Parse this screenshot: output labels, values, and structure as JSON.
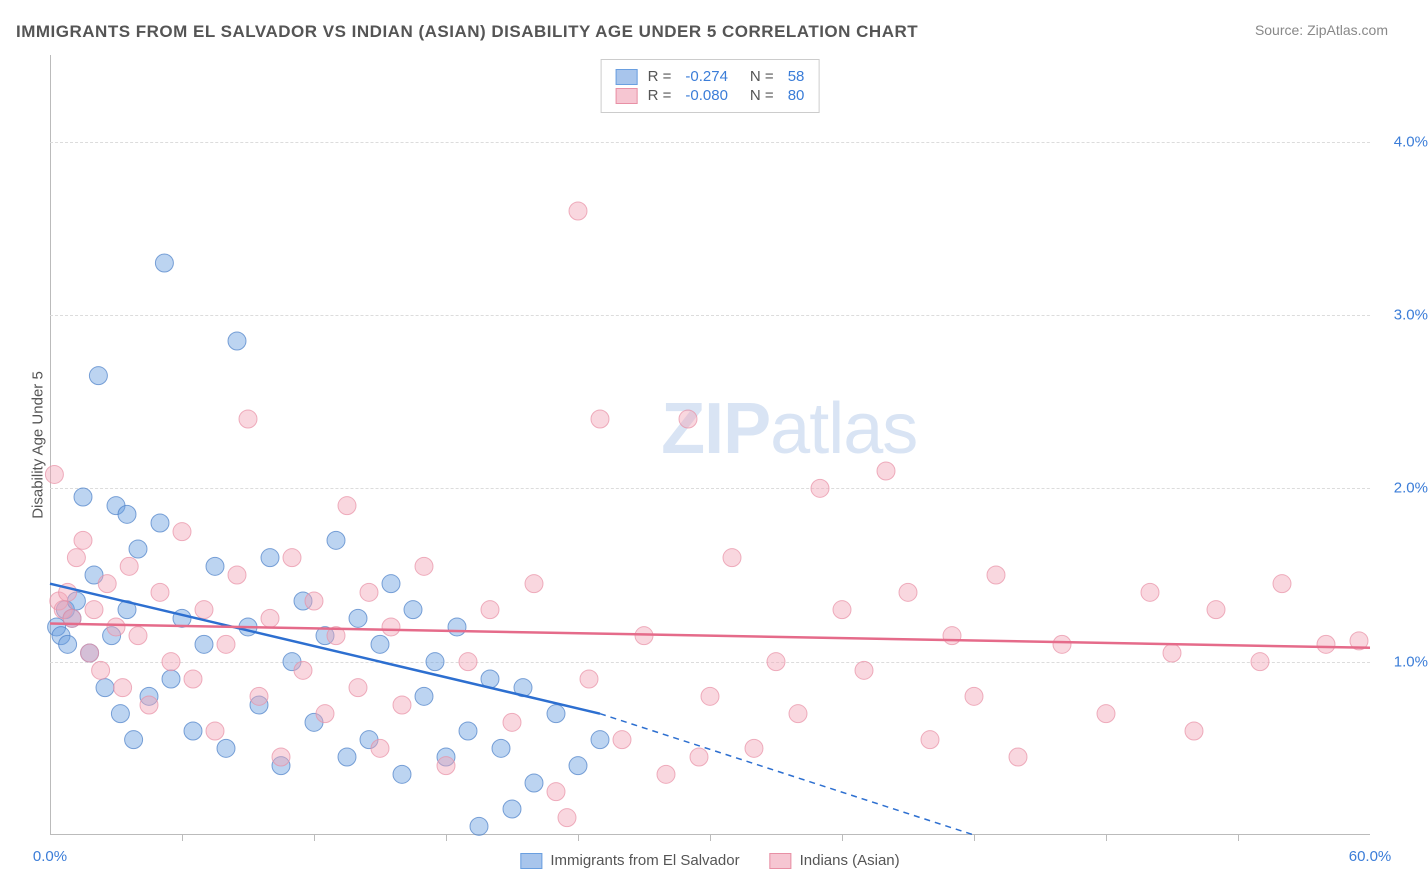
{
  "title": "IMMIGRANTS FROM EL SALVADOR VS INDIAN (ASIAN) DISABILITY AGE UNDER 5 CORRELATION CHART",
  "source_label": "Source:",
  "source_name": "ZipAtlas.com",
  "watermark": {
    "bold": "ZIP",
    "rest": "atlas"
  },
  "y_axis_label": "Disability Age Under 5",
  "chart": {
    "type": "scatter",
    "xlim": [
      0,
      60
    ],
    "ylim": [
      0,
      4.5
    ],
    "x_ticks": [
      0,
      60
    ],
    "x_tick_labels": [
      "0.0%",
      "60.0%"
    ],
    "y_ticks": [
      1.0,
      2.0,
      3.0,
      4.0
    ],
    "y_tick_labels": [
      "1.0%",
      "2.0%",
      "3.0%",
      "4.0%"
    ],
    "x_minor_ticks": [
      6,
      12,
      18,
      24,
      30,
      36,
      42,
      48,
      54
    ],
    "grid_color": "#dcdcdc",
    "background_color": "#ffffff",
    "marker_radius": 9,
    "marker_opacity": 0.45,
    "line_width": 2.5,
    "series": [
      {
        "name": "Immigrants from El Salvador",
        "color": "#6a9fe0",
        "stroke": "#4a7fc8",
        "line_color": "#2d6fd0",
        "R": "-0.274",
        "N": "58",
        "regression": {
          "x1": 0,
          "y1": 1.45,
          "x2": 25,
          "y2": 0.7,
          "extend_x": 42,
          "extend_y": 0.0
        },
        "points": [
          [
            0.3,
            1.2
          ],
          [
            0.5,
            1.15
          ],
          [
            0.7,
            1.3
          ],
          [
            0.8,
            1.1
          ],
          [
            1.0,
            1.25
          ],
          [
            1.2,
            1.35
          ],
          [
            1.5,
            1.95
          ],
          [
            1.8,
            1.05
          ],
          [
            2.0,
            1.5
          ],
          [
            2.2,
            2.65
          ],
          [
            2.5,
            0.85
          ],
          [
            2.8,
            1.15
          ],
          [
            3.0,
            1.9
          ],
          [
            3.2,
            0.7
          ],
          [
            3.5,
            1.3
          ],
          [
            3.8,
            0.55
          ],
          [
            4.0,
            1.65
          ],
          [
            4.5,
            0.8
          ],
          [
            5.0,
            1.8
          ],
          [
            5.2,
            3.3
          ],
          [
            5.5,
            0.9
          ],
          [
            6.0,
            1.25
          ],
          [
            6.5,
            0.6
          ],
          [
            7.0,
            1.1
          ],
          [
            7.5,
            1.55
          ],
          [
            8.0,
            0.5
          ],
          [
            8.5,
            2.85
          ],
          [
            9.0,
            1.2
          ],
          [
            9.5,
            0.75
          ],
          [
            10.0,
            1.6
          ],
          [
            10.5,
            0.4
          ],
          [
            11.0,
            1.0
          ],
          [
            11.5,
            1.35
          ],
          [
            12.0,
            0.65
          ],
          [
            12.5,
            1.15
          ],
          [
            13.0,
            1.7
          ],
          [
            13.5,
            0.45
          ],
          [
            14.0,
            1.25
          ],
          [
            14.5,
            0.55
          ],
          [
            15.0,
            1.1
          ],
          [
            15.5,
            1.45
          ],
          [
            16.0,
            0.35
          ],
          [
            16.5,
            1.3
          ],
          [
            17.0,
            0.8
          ],
          [
            17.5,
            1.0
          ],
          [
            18.0,
            0.45
          ],
          [
            18.5,
            1.2
          ],
          [
            19.0,
            0.6
          ],
          [
            19.5,
            0.05
          ],
          [
            20.0,
            0.9
          ],
          [
            20.5,
            0.5
          ],
          [
            21.0,
            0.15
          ],
          [
            21.5,
            0.85
          ],
          [
            22.0,
            0.3
          ],
          [
            23.0,
            0.7
          ],
          [
            24.0,
            0.4
          ],
          [
            25.0,
            0.55
          ],
          [
            3.5,
            1.85
          ]
        ]
      },
      {
        "name": "Indians (Asian)",
        "color": "#f2a7b8",
        "stroke": "#e890a5",
        "line_color": "#e56b8a",
        "R": "-0.080",
        "N": "80",
        "regression": {
          "x1": 0,
          "y1": 1.22,
          "x2": 60,
          "y2": 1.08
        },
        "points": [
          [
            0.2,
            2.08
          ],
          [
            0.4,
            1.35
          ],
          [
            0.6,
            1.3
          ],
          [
            0.8,
            1.4
          ],
          [
            1.0,
            1.25
          ],
          [
            1.2,
            1.6
          ],
          [
            1.5,
            1.7
          ],
          [
            1.8,
            1.05
          ],
          [
            2.0,
            1.3
          ],
          [
            2.3,
            0.95
          ],
          [
            2.6,
            1.45
          ],
          [
            3.0,
            1.2
          ],
          [
            3.3,
            0.85
          ],
          [
            3.6,
            1.55
          ],
          [
            4.0,
            1.15
          ],
          [
            4.5,
            0.75
          ],
          [
            5.0,
            1.4
          ],
          [
            5.5,
            1.0
          ],
          [
            6.0,
            1.75
          ],
          [
            6.5,
            0.9
          ],
          [
            7.0,
            1.3
          ],
          [
            7.5,
            0.6
          ],
          [
            8.0,
            1.1
          ],
          [
            8.5,
            1.5
          ],
          [
            9.0,
            2.4
          ],
          [
            9.5,
            0.8
          ],
          [
            10.0,
            1.25
          ],
          [
            10.5,
            0.45
          ],
          [
            11.0,
            1.6
          ],
          [
            11.5,
            0.95
          ],
          [
            12.0,
            1.35
          ],
          [
            12.5,
            0.7
          ],
          [
            13.0,
            1.15
          ],
          [
            13.5,
            1.9
          ],
          [
            14.0,
            0.85
          ],
          [
            14.5,
            1.4
          ],
          [
            15.0,
            0.5
          ],
          [
            15.5,
            1.2
          ],
          [
            16.0,
            0.75
          ],
          [
            17.0,
            1.55
          ],
          [
            18.0,
            0.4
          ],
          [
            19.0,
            1.0
          ],
          [
            20.0,
            1.3
          ],
          [
            21.0,
            0.65
          ],
          [
            22.0,
            1.45
          ],
          [
            23.0,
            0.25
          ],
          [
            24.0,
            3.6
          ],
          [
            24.5,
            0.9
          ],
          [
            25.0,
            2.4
          ],
          [
            26.0,
            0.55
          ],
          [
            27.0,
            1.15
          ],
          [
            28.0,
            0.35
          ],
          [
            29.0,
            2.4
          ],
          [
            30.0,
            0.8
          ],
          [
            31.0,
            1.6
          ],
          [
            32.0,
            0.5
          ],
          [
            33.0,
            1.0
          ],
          [
            34.0,
            0.7
          ],
          [
            35.0,
            2.0
          ],
          [
            36.0,
            1.3
          ],
          [
            37.0,
            0.95
          ],
          [
            38.0,
            2.1
          ],
          [
            39.0,
            1.4
          ],
          [
            40.0,
            0.55
          ],
          [
            41.0,
            1.15
          ],
          [
            42.0,
            0.8
          ],
          [
            43.0,
            1.5
          ],
          [
            44.0,
            0.45
          ],
          [
            46.0,
            1.1
          ],
          [
            48.0,
            0.7
          ],
          [
            50.0,
            1.4
          ],
          [
            51.0,
            1.05
          ],
          [
            52.0,
            0.6
          ],
          [
            53.0,
            1.3
          ],
          [
            55.0,
            1.0
          ],
          [
            56.0,
            1.45
          ],
          [
            58.0,
            1.1
          ],
          [
            59.5,
            1.12
          ],
          [
            23.5,
            0.1
          ],
          [
            29.5,
            0.45
          ]
        ]
      }
    ]
  },
  "legend_bottom": [
    {
      "label": "Immigrants from El Salvador",
      "fill": "#a8c5ec",
      "border": "#6a9fe0"
    },
    {
      "label": "Indians (Asian)",
      "fill": "#f6c6d2",
      "border": "#e890a5"
    }
  ]
}
